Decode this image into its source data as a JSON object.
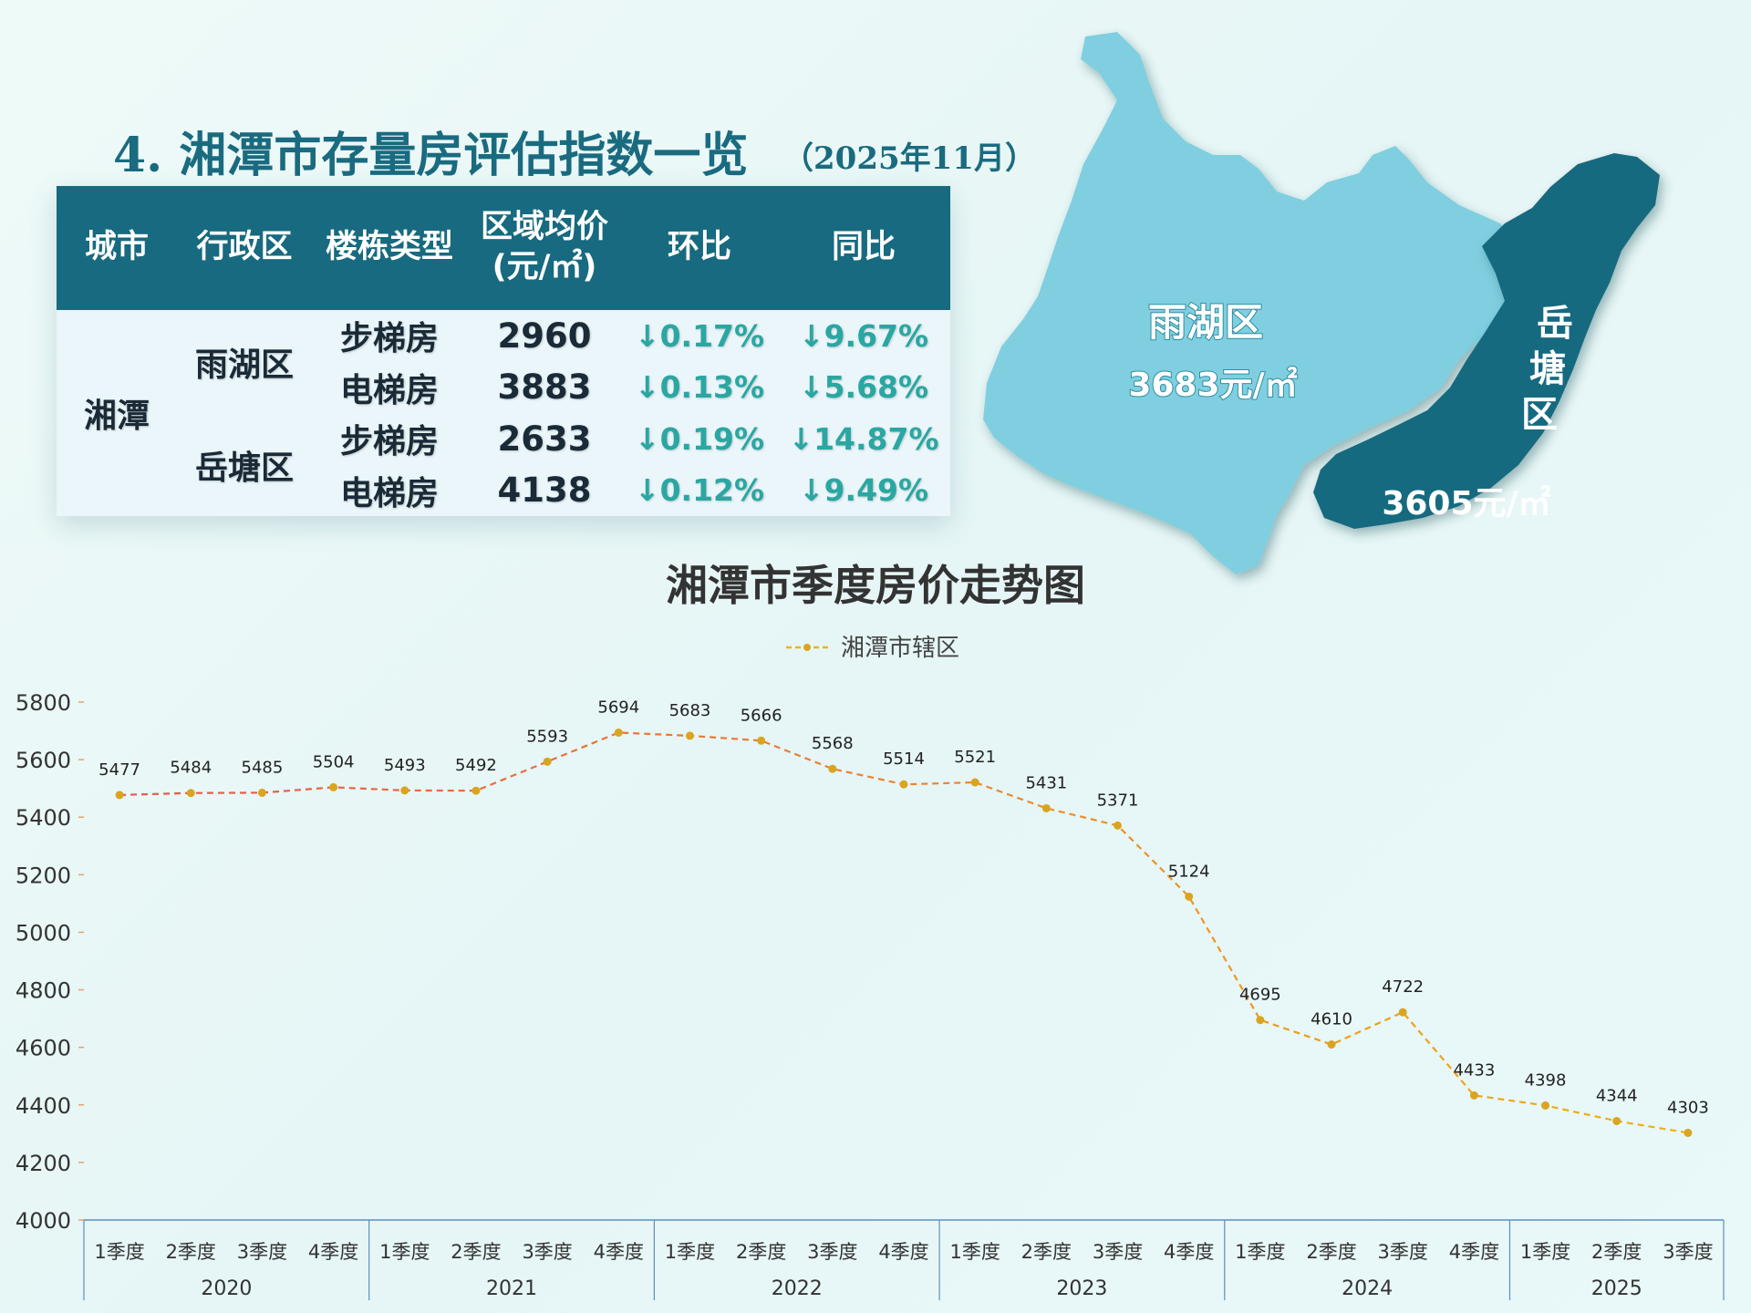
{
  "heading": {
    "title": "4. 湘潭市存量房评估指数一览",
    "date": "（2025年11月）"
  },
  "table": {
    "headers": [
      "城市",
      "行政区",
      "楼栋类型",
      "区域均价\n(元/㎡)",
      "环比",
      "同比"
    ],
    "city": "湘潭",
    "districts": [
      {
        "name": "雨湖区",
        "rows": [
          {
            "type": "步梯房",
            "price": "2960",
            "mom": "↓0.17%",
            "yoy": "↓9.67%"
          },
          {
            "type": "电梯房",
            "price": "3883",
            "mom": "↓0.13%",
            "yoy": "↓5.68%"
          }
        ]
      },
      {
        "name": "岳塘区",
        "rows": [
          {
            "type": "步梯房",
            "price": "2633",
            "mom": "↓0.19%",
            "yoy": "↓14.87%"
          },
          {
            "type": "电梯房",
            "price": "4138",
            "mom": "↓0.12%",
            "yoy": "↓9.49%"
          }
        ]
      }
    ]
  },
  "map": {
    "regions": [
      {
        "name": "雨湖区",
        "price": "3683元/㎡",
        "color": "#7fcfe0"
      },
      {
        "name": "岳塘区",
        "name_lines": [
          "岳",
          "塘",
          "区"
        ],
        "price": "3605元/㎡",
        "color": "#176a7f"
      }
    ]
  },
  "chart_data": {
    "type": "line",
    "title": "湘潭市季度房价走势图",
    "legend": {
      "label": "湘潭市辖区",
      "position": "top-center"
    },
    "series": [
      {
        "name": "湘潭市辖区",
        "line_style": "dashed",
        "values": [
          5477,
          5484,
          5485,
          5504,
          5493,
          5492,
          5593,
          5694,
          5683,
          5666,
          5568,
          5514,
          5521,
          5431,
          5371,
          5124,
          4695,
          4610,
          4722,
          4433,
          4398,
          4344,
          4303
        ]
      }
    ],
    "categories": [
      "1季度",
      "2季度",
      "3季度",
      "4季度",
      "1季度",
      "2季度",
      "3季度",
      "4季度",
      "1季度",
      "2季度",
      "3季度",
      "4季度",
      "1季度",
      "2季度",
      "3季度",
      "4季度",
      "1季度",
      "2季度",
      "3季度",
      "4季度",
      "1季度",
      "2季度",
      "3季度"
    ],
    "year_groups": [
      {
        "year": "2020",
        "count": 4
      },
      {
        "year": "2021",
        "count": 4
      },
      {
        "year": "2022",
        "count": 4
      },
      {
        "year": "2023",
        "count": 4
      },
      {
        "year": "2024",
        "count": 4
      },
      {
        "year": "2025",
        "count": 3
      }
    ],
    "ylim": [
      4000,
      5800
    ],
    "yticks": [
      4000,
      4200,
      4400,
      4600,
      4800,
      5000,
      5200,
      5400,
      5600,
      5800
    ],
    "grid": false,
    "colors": {
      "start": "#e8574e",
      "end": "#f0b10f",
      "marker": "#d9a520",
      "axis": "#5f8fbd"
    }
  }
}
